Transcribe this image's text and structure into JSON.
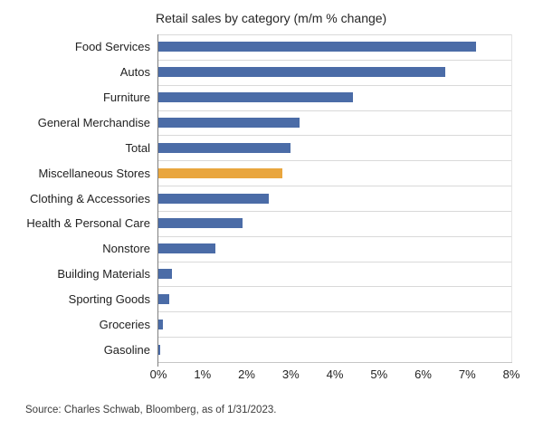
{
  "chart_data": {
    "type": "bar",
    "orientation": "horizontal",
    "title": "Retail sales by category (m/m % change)",
    "categories": [
      "Food Services",
      "Autos",
      "Furniture",
      "General Merchandise",
      "Total",
      "Miscellaneous Stores",
      "Clothing & Accessories",
      "Health & Personal Care",
      "Nonstore",
      "Building Materials",
      "Sporting Goods",
      "Groceries",
      "Gasoline"
    ],
    "values": [
      7.2,
      6.5,
      4.4,
      3.2,
      3.0,
      2.8,
      2.5,
      1.9,
      1.3,
      0.3,
      0.25,
      0.1,
      0.05
    ],
    "highlight_category": "Miscellaneous Stores",
    "xlim": [
      0,
      8
    ],
    "x_tick_labels": [
      "0%",
      "1%",
      "2%",
      "3%",
      "4%",
      "5%",
      "6%",
      "7%",
      "8%"
    ],
    "grid": "horizontal row separators, light gray",
    "legend": "none",
    "colors": {
      "bar_default": "#4b6ca7",
      "bar_highlight": "#e9a63e",
      "gridline": "#d9d9d9",
      "axis_line": "#7f7f7f",
      "text": "#222222"
    }
  },
  "source_note": "Source: Charles Schwab, Bloomberg, as of 1/31/2023."
}
